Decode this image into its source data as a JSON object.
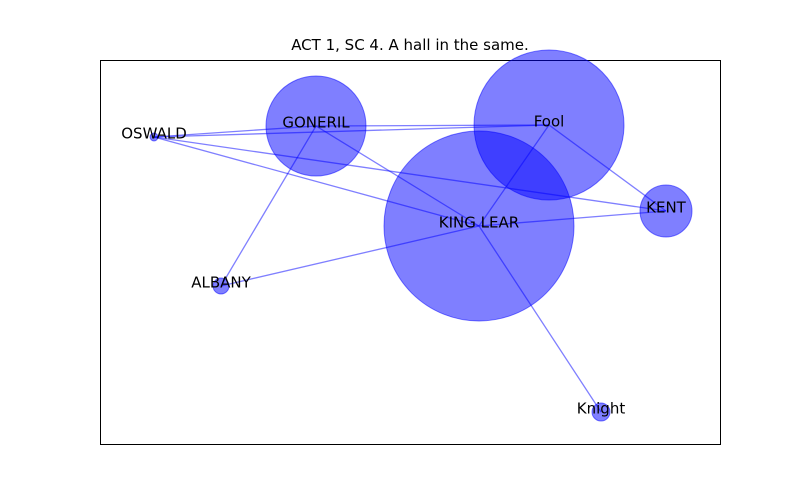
{
  "title": "ACT 1, SC 4. A hall in the same.",
  "colors": {
    "node": "#0000ff",
    "edge": "#0000ff",
    "frame": "#000000"
  },
  "network": {
    "nodes": [
      {
        "id": "kinglear",
        "label": "KING LEAR",
        "weight": 95
      },
      {
        "id": "fool",
        "label": "Fool",
        "weight": 75
      },
      {
        "id": "goneril",
        "label": "GONERIL",
        "weight": 50
      },
      {
        "id": "kent",
        "label": "KENT",
        "weight": 26
      },
      {
        "id": "albany",
        "label": "ALBANY",
        "weight": 8
      },
      {
        "id": "knight",
        "label": "Knight",
        "weight": 9
      },
      {
        "id": "oswald",
        "label": "OSWALD",
        "weight": 4
      }
    ],
    "edges": [
      [
        "oswald",
        "goneril"
      ],
      [
        "oswald",
        "fool"
      ],
      [
        "oswald",
        "kent"
      ],
      [
        "oswald",
        "kinglear"
      ],
      [
        "goneril",
        "fool"
      ],
      [
        "goneril",
        "kinglear"
      ],
      [
        "goneril",
        "albany"
      ],
      [
        "fool",
        "kinglear"
      ],
      [
        "fool",
        "kent"
      ],
      [
        "kinglear",
        "kent"
      ],
      [
        "kinglear",
        "albany"
      ],
      [
        "kinglear",
        "knight"
      ]
    ]
  }
}
